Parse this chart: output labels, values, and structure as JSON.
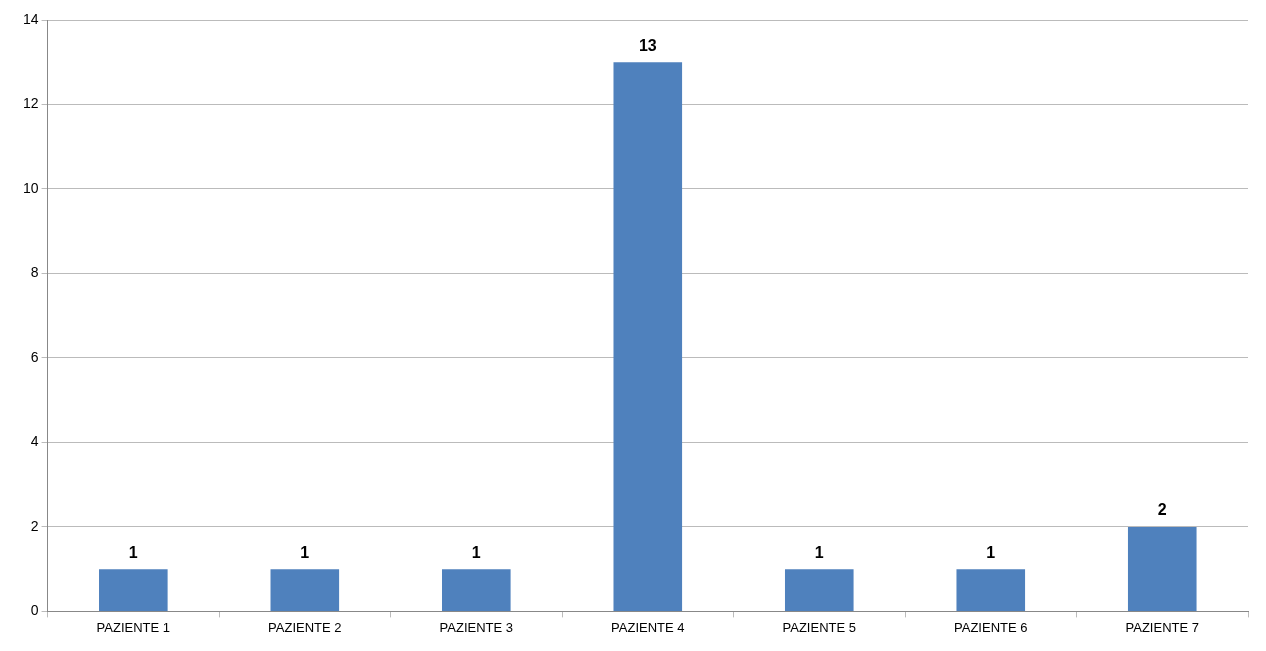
{
  "chart_data": {
    "type": "bar",
    "categories": [
      "PAZIENTE 1",
      "PAZIENTE 2",
      "PAZIENTE 3",
      "PAZIENTE 4",
      "PAZIENTE 5",
      "PAZIENTE 6",
      "PAZIENTE 7"
    ],
    "values": [
      1,
      1,
      1,
      13,
      1,
      1,
      2
    ],
    "color": "#4f81bd",
    "ylim": [
      0,
      14
    ],
    "yticks": [
      0,
      2,
      4,
      6,
      8,
      10,
      12,
      14
    ],
    "grid": "y",
    "data_labels": true
  }
}
